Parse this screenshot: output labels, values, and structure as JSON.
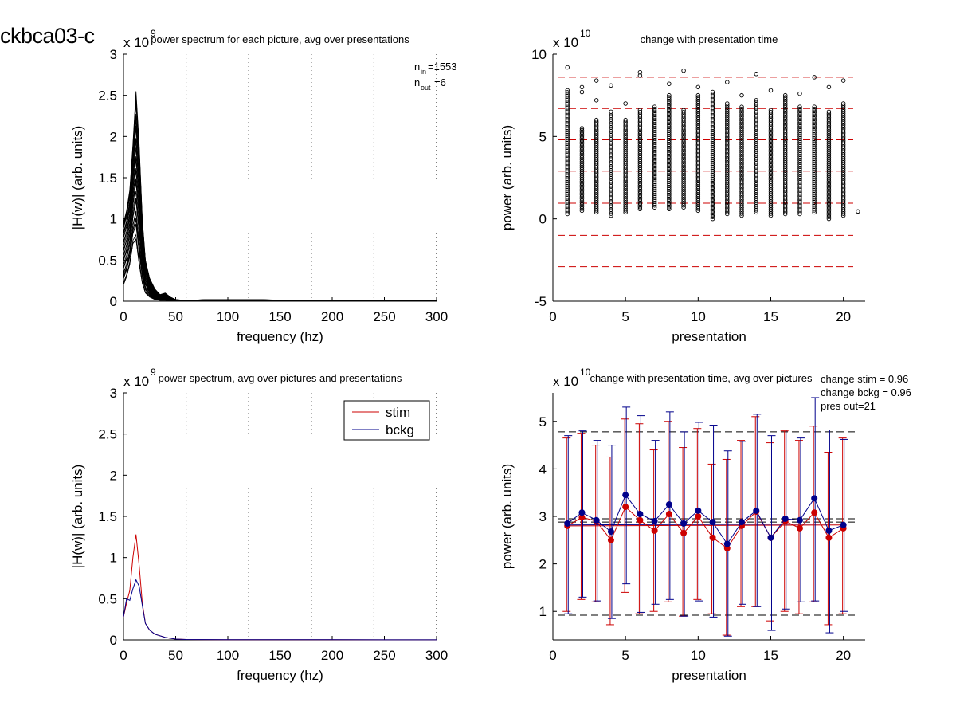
{
  "figure_label": "ckbca03-c",
  "chart_data": [
    {
      "type": "line",
      "title": "power spectrum for each picture, avg over presentations",
      "xlabel": "frequency (hz)",
      "ylabel": "|H(w)| (arb. units)",
      "y_exponent": "x 10",
      "y_exponent_power": "9",
      "xlim": [
        0,
        300
      ],
      "ylim": [
        0,
        3
      ],
      "xticks": [
        "0",
        "50",
        "100",
        "150",
        "200",
        "250",
        "300"
      ],
      "yticks": [
        "0",
        "0.5",
        "1",
        "1.5",
        "2",
        "2.5",
        "3"
      ],
      "vlines_dotted": [
        60,
        120,
        180,
        240,
        300
      ],
      "n_in_label": "n",
      "n_in_sub": "in",
      "n_in_value": "=1553",
      "n_out_label": "n",
      "n_out_sub": "out",
      "n_out_value": "=6",
      "x": [
        0,
        3,
        6,
        9,
        12,
        15,
        18,
        21,
        25,
        30,
        35,
        40,
        45,
        50,
        60,
        80,
        100,
        130,
        160,
        200,
        250,
        300
      ],
      "envelope_upper": [
        0.95,
        1.1,
        1.35,
        1.9,
        2.55,
        1.9,
        1.0,
        0.5,
        0.28,
        0.15,
        0.08,
        0.1,
        0.05,
        0.02,
        0.01,
        0.02,
        0.02,
        0.02,
        0.01,
        0.01,
        0.005,
        0.005
      ],
      "envelope_lower": [
        0.2,
        0.3,
        0.45,
        0.7,
        0.75,
        0.45,
        0.22,
        0.1,
        0.05,
        0.02,
        0.01,
        0.01,
        0.0,
        0.0,
        0.0,
        0.0,
        0.0,
        0.0,
        0.0,
        0.0,
        0.0,
        0.0
      ],
      "curve_count": 40,
      "color": "#000000"
    },
    {
      "type": "scatter",
      "title": "change with presentation time",
      "xlabel": "presentation",
      "ylabel": "power (arb. units)",
      "y_exponent": "x 10",
      "y_exponent_power": "10",
      "xlim": [
        0,
        21.5
      ],
      "ylim": [
        -5,
        10
      ],
      "xticks": [
        "0",
        "5",
        "10",
        "15",
        "20"
      ],
      "yticks": [
        "-5",
        "0",
        "5",
        "10"
      ],
      "hlines_dashed": [
        8.6,
        6.7,
        4.8,
        2.9,
        0.95,
        -1.0,
        -2.9
      ],
      "hline_color": "#cc0000",
      "series": [
        {
          "x": 1,
          "min": 0.3,
          "max": 7.8,
          "outliers": [
            9.2
          ]
        },
        {
          "x": 2,
          "min": 0.5,
          "max": 5.5,
          "outliers": [
            7.7,
            8.0
          ]
        },
        {
          "x": 3,
          "min": 0.4,
          "max": 6.0,
          "outliers": [
            7.2,
            8.4
          ]
        },
        {
          "x": 4,
          "min": 0.2,
          "max": 6.5,
          "outliers": [
            8.1
          ]
        },
        {
          "x": 5,
          "min": 0.4,
          "max": 6.0,
          "outliers": [
            7.0
          ]
        },
        {
          "x": 6,
          "min": 0.6,
          "max": 6.6,
          "outliers": [
            8.7,
            8.9
          ]
        },
        {
          "x": 7,
          "min": 0.7,
          "max": 6.8,
          "outliers": []
        },
        {
          "x": 8,
          "min": 0.6,
          "max": 7.5,
          "outliers": [
            8.2
          ]
        },
        {
          "x": 9,
          "min": 0.7,
          "max": 6.6,
          "outliers": [
            9.0
          ]
        },
        {
          "x": 10,
          "min": 0.5,
          "max": 7.5,
          "outliers": [
            8.0
          ]
        },
        {
          "x": 11,
          "min": 0.0,
          "max": 7.7,
          "outliers": []
        },
        {
          "x": 12,
          "min": 0.3,
          "max": 7.0,
          "outliers": [
            8.3
          ]
        },
        {
          "x": 13,
          "min": 0.2,
          "max": 6.8,
          "outliers": [
            7.5
          ]
        },
        {
          "x": 14,
          "min": 0.4,
          "max": 7.2,
          "outliers": [
            8.8
          ]
        },
        {
          "x": 15,
          "min": 0.2,
          "max": 6.6,
          "outliers": [
            7.8
          ]
        },
        {
          "x": 16,
          "min": 0.3,
          "max": 7.5,
          "outliers": []
        },
        {
          "x": 17,
          "min": 0.3,
          "max": 6.8,
          "outliers": [
            7.6
          ]
        },
        {
          "x": 18,
          "min": 0.4,
          "max": 6.8,
          "outliers": [
            8.6
          ]
        },
        {
          "x": 19,
          "min": 0.0,
          "max": 6.5,
          "outliers": [
            8.0
          ]
        },
        {
          "x": 20,
          "min": 0.2,
          "max": 7.0,
          "outliers": [
            8.4
          ]
        },
        {
          "x": 21,
          "min": 0.45,
          "max": 0.45,
          "outliers": []
        }
      ],
      "marker": "open-circle"
    },
    {
      "type": "line",
      "title": "power spectrum, avg over pictures and presentations",
      "xlabel": "frequency (hz)",
      "ylabel": "|H(w)| (arb. units)",
      "y_exponent": "x 10",
      "y_exponent_power": "9",
      "xlim": [
        0,
        300
      ],
      "ylim": [
        0,
        3
      ],
      "xticks": [
        "0",
        "50",
        "100",
        "150",
        "200",
        "250",
        "300"
      ],
      "yticks": [
        "0",
        "0.5",
        "1",
        "1.5",
        "2",
        "2.5",
        "3"
      ],
      "vlines_dotted": [
        60,
        120,
        180,
        240,
        300
      ],
      "legend_position": "top-right",
      "x": [
        0,
        3,
        6,
        9,
        12,
        15,
        18,
        21,
        25,
        30,
        40,
        50,
        60,
        100,
        150,
        200,
        250,
        300
      ],
      "series": [
        {
          "name": "stim",
          "color": "#cc0000",
          "values": [
            0.28,
            0.45,
            0.6,
            1.0,
            1.28,
            0.9,
            0.45,
            0.2,
            0.12,
            0.07,
            0.03,
            0.01,
            0.005,
            0.003,
            0.002,
            0.002,
            0.001,
            0.001
          ]
        },
        {
          "name": "bckg",
          "color": "#00008b",
          "values": [
            0.28,
            0.5,
            0.48,
            0.62,
            0.73,
            0.65,
            0.42,
            0.2,
            0.12,
            0.07,
            0.03,
            0.01,
            0.005,
            0.003,
            0.002,
            0.002,
            0.001,
            0.001
          ]
        }
      ]
    },
    {
      "type": "line",
      "title": "change with presentation time, avg over pictures",
      "xlabel": "presentation",
      "ylabel": "power (arb. units)",
      "y_exponent": "x 10",
      "y_exponent_power": "10",
      "xlim": [
        0,
        21.5
      ],
      "ylim": [
        0.4,
        5.6
      ],
      "xticks": [
        "0",
        "5",
        "10",
        "15",
        "20"
      ],
      "yticks": [
        "1",
        "2",
        "3",
        "4",
        "5"
      ],
      "annotations": [
        "change stim = 0.96",
        "change bckg = 0.96",
        "pres out=21"
      ],
      "hlines_dashed": [
        4.78,
        2.95,
        2.88,
        0.92
      ],
      "hline_color": "#000000",
      "fit_lines": [
        {
          "color": "#cc0000",
          "y_start": 2.8,
          "y_end": 2.82
        },
        {
          "color": "#00008b",
          "y_start": 2.82,
          "y_end": 2.84
        }
      ],
      "x": [
        1,
        2,
        3,
        4,
        5,
        6,
        7,
        8,
        9,
        10,
        11,
        12,
        13,
        14,
        15,
        16,
        17,
        18,
        19,
        20
      ],
      "series": [
        {
          "name": "stim",
          "color": "#cc0000",
          "values": [
            2.8,
            2.98,
            2.9,
            2.5,
            3.2,
            2.92,
            2.7,
            3.05,
            2.65,
            3.0,
            2.55,
            2.33,
            2.8,
            3.1,
            2.55,
            2.9,
            2.75,
            3.08,
            2.55,
            2.75
          ],
          "err_low": [
            1.0,
            1.25,
            1.2,
            0.72,
            1.4,
            0.95,
            1.0,
            1.2,
            0.9,
            1.25,
            0.95,
            0.5,
            1.1,
            1.1,
            0.8,
            1.0,
            0.95,
            1.2,
            0.72,
            0.95
          ],
          "err_high": [
            4.65,
            4.75,
            4.5,
            4.25,
            5.05,
            4.95,
            4.4,
            5.0,
            4.45,
            4.85,
            4.1,
            4.2,
            4.6,
            5.1,
            4.55,
            4.8,
            4.6,
            4.9,
            4.35,
            4.65
          ]
        },
        {
          "name": "bckg",
          "color": "#00008b",
          "values": [
            2.85,
            3.08,
            2.92,
            2.68,
            3.45,
            3.05,
            2.9,
            3.25,
            2.85,
            3.12,
            2.88,
            2.42,
            2.88,
            3.12,
            2.55,
            2.95,
            2.92,
            3.38,
            2.7,
            2.82
          ],
          "err_low": [
            0.95,
            1.3,
            1.22,
            0.85,
            1.58,
            0.98,
            1.15,
            1.25,
            0.9,
            1.22,
            0.88,
            0.48,
            1.15,
            1.1,
            0.6,
            1.05,
            1.2,
            1.22,
            0.55,
            1.0
          ],
          "err_high": [
            4.7,
            4.8,
            4.6,
            4.5,
            5.3,
            5.12,
            4.6,
            5.2,
            4.78,
            4.98,
            4.92,
            4.38,
            4.58,
            5.15,
            4.7,
            4.82,
            4.65,
            5.5,
            4.82,
            4.62
          ]
        }
      ]
    }
  ]
}
